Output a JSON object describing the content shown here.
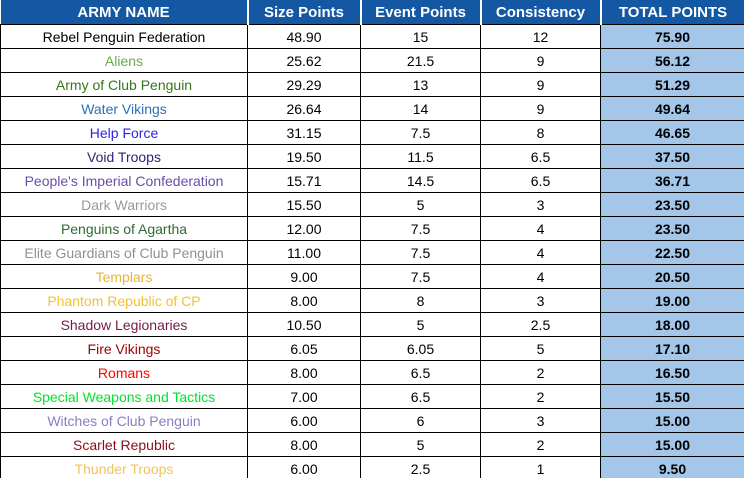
{
  "colors": {
    "header_bg": "#1457a3",
    "header_text": "#ffffff",
    "total_col_bg": "#a3c6e9",
    "body_bg": "#ffffff",
    "grid_border": "#000000",
    "total_text": "#000000"
  },
  "table": {
    "columns": [
      {
        "key": "name",
        "label": "ARMY NAME"
      },
      {
        "key": "size",
        "label": "Size Points"
      },
      {
        "key": "event",
        "label": "Event Points"
      },
      {
        "key": "consistency",
        "label": "Consistency"
      },
      {
        "key": "total",
        "label": "TOTAL POINTS"
      }
    ],
    "rows": [
      {
        "name": "Rebel Penguin Federation",
        "color": "#000000",
        "size": "48.90",
        "event": "15",
        "consistency": "12",
        "total": "75.90"
      },
      {
        "name": "Aliens",
        "color": "#6aa84f",
        "size": "25.62",
        "event": "21.5",
        "consistency": "9",
        "total": "56.12"
      },
      {
        "name": "Army of Club Penguin",
        "color": "#38761d",
        "size": "29.29",
        "event": "13",
        "consistency": "9",
        "total": "51.29"
      },
      {
        "name": "Water Vikings",
        "color": "#2e6fba",
        "size": "26.64",
        "event": "14",
        "consistency": "9",
        "total": "49.64"
      },
      {
        "name": "Help Force",
        "color": "#2d1fe0",
        "size": "31.15",
        "event": "7.5",
        "consistency": "8",
        "total": "46.65"
      },
      {
        "name": "Void Troops",
        "color": "#351c75",
        "size": "19.50",
        "event": "11.5",
        "consistency": "6.5",
        "total": "37.50"
      },
      {
        "name": "People's Imperial Confederation",
        "color": "#674ea7",
        "size": "15.71",
        "event": "14.5",
        "consistency": "6.5",
        "total": "36.71"
      },
      {
        "name": "Dark Warriors",
        "color": "#999999",
        "size": "15.50",
        "event": "5",
        "consistency": "3",
        "total": "23.50"
      },
      {
        "name": "Penguins of Agartha",
        "color": "#2e6b34",
        "size": "12.00",
        "event": "7.5",
        "consistency": "4",
        "total": "23.50"
      },
      {
        "name": "Elite Guardians of Club Penguin",
        "color": "#909090",
        "size": "11.00",
        "event": "7.5",
        "consistency": "4",
        "total": "22.50"
      },
      {
        "name": "Templars",
        "color": "#e6b43c",
        "size": "9.00",
        "event": "7.5",
        "consistency": "4",
        "total": "20.50"
      },
      {
        "name": "Phantom Republic of CP",
        "color": "#f1c232",
        "size": "8.00",
        "event": "8",
        "consistency": "3",
        "total": "19.00"
      },
      {
        "name": "Shadow Legionaries",
        "color": "#741b47",
        "size": "10.50",
        "event": "5",
        "consistency": "2.5",
        "total": "18.00"
      },
      {
        "name": "Fire Vikings",
        "color": "#990000",
        "size": "6.05",
        "event": "6.05",
        "consistency": "5",
        "total": "17.10"
      },
      {
        "name": "Romans",
        "color": "#ff0000",
        "size": "8.00",
        "event": "6.5",
        "consistency": "2",
        "total": "16.50"
      },
      {
        "name": "Special Weapons and Tactics",
        "color": "#00e32a",
        "size": "7.00",
        "event": "6.5",
        "consistency": "2",
        "total": "15.50"
      },
      {
        "name": "Witches of Club Penguin",
        "color": "#8e7cc3",
        "size": "6.00",
        "event": "6",
        "consistency": "3",
        "total": "15.00"
      },
      {
        "name": "Scarlet Republic",
        "color": "#8b0f1a",
        "size": "8.00",
        "event": "5",
        "consistency": "2",
        "total": "15.00"
      },
      {
        "name": "Thunder Troops",
        "color": "#f0c35e",
        "size": "6.00",
        "event": "2.5",
        "consistency": "1",
        "total": "9.50"
      }
    ]
  }
}
